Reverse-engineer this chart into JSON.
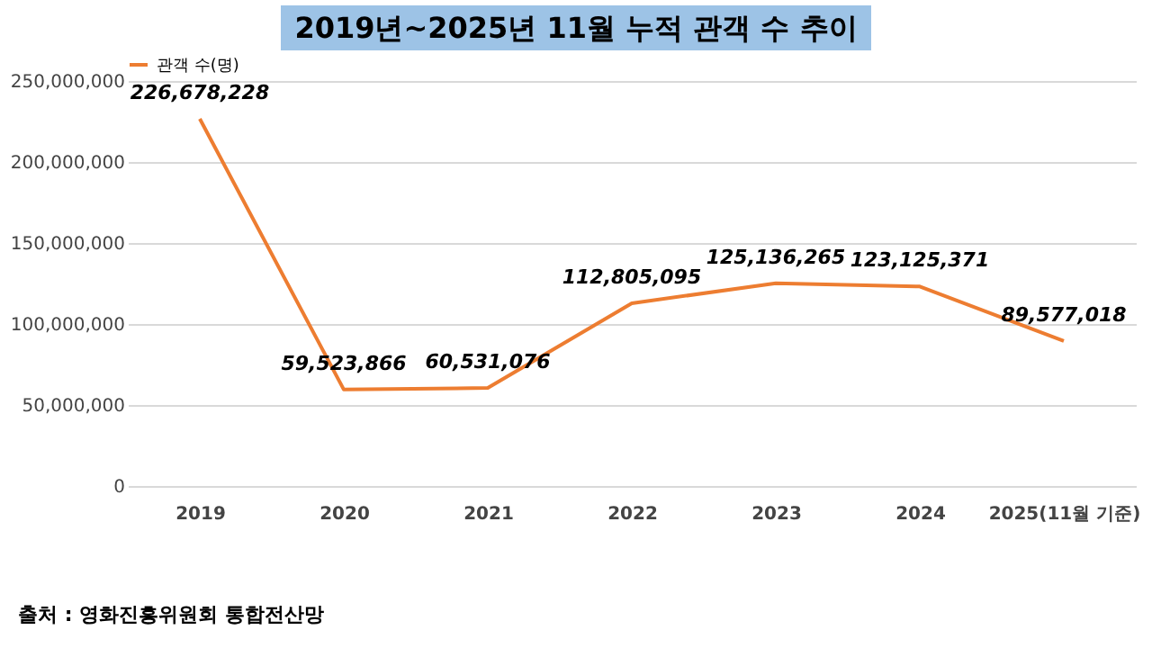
{
  "chart_data": {
    "type": "line",
    "title": "2019년~2025년 11월 누적 관객 수 추이",
    "categories": [
      "2019",
      "2020",
      "2021",
      "2022",
      "2023",
      "2024",
      "2025(11월 기준)"
    ],
    "series": [
      {
        "name": "관객 수(명)",
        "color": "#ed7d31",
        "values": [
          226678228,
          59523866,
          60531076,
          112805095,
          125136265,
          123125371,
          89577018
        ]
      }
    ],
    "ylim": [
      0,
      250000000
    ],
    "yticks": [
      {
        "value": 0,
        "label": "0"
      },
      {
        "value": 50000000,
        "label": "50,000,000"
      },
      {
        "value": 100000000,
        "label": "100,000,000"
      },
      {
        "value": 150000000,
        "label": "150,000,000"
      },
      {
        "value": 200000000,
        "label": "200,000,000"
      },
      {
        "value": 250000000,
        "label": "250,000,000"
      }
    ],
    "value_labels": [
      "226,678,228",
      "59,523,866",
      "60,531,076",
      "112,805,095",
      "125,136,265",
      "123,125,371",
      "89,577,018"
    ],
    "grid": "y",
    "legend": "top",
    "marker": "none",
    "line_style": "solid",
    "annotations": [
      "출처 : 영화진흥위원회 통합전산망"
    ]
  }
}
